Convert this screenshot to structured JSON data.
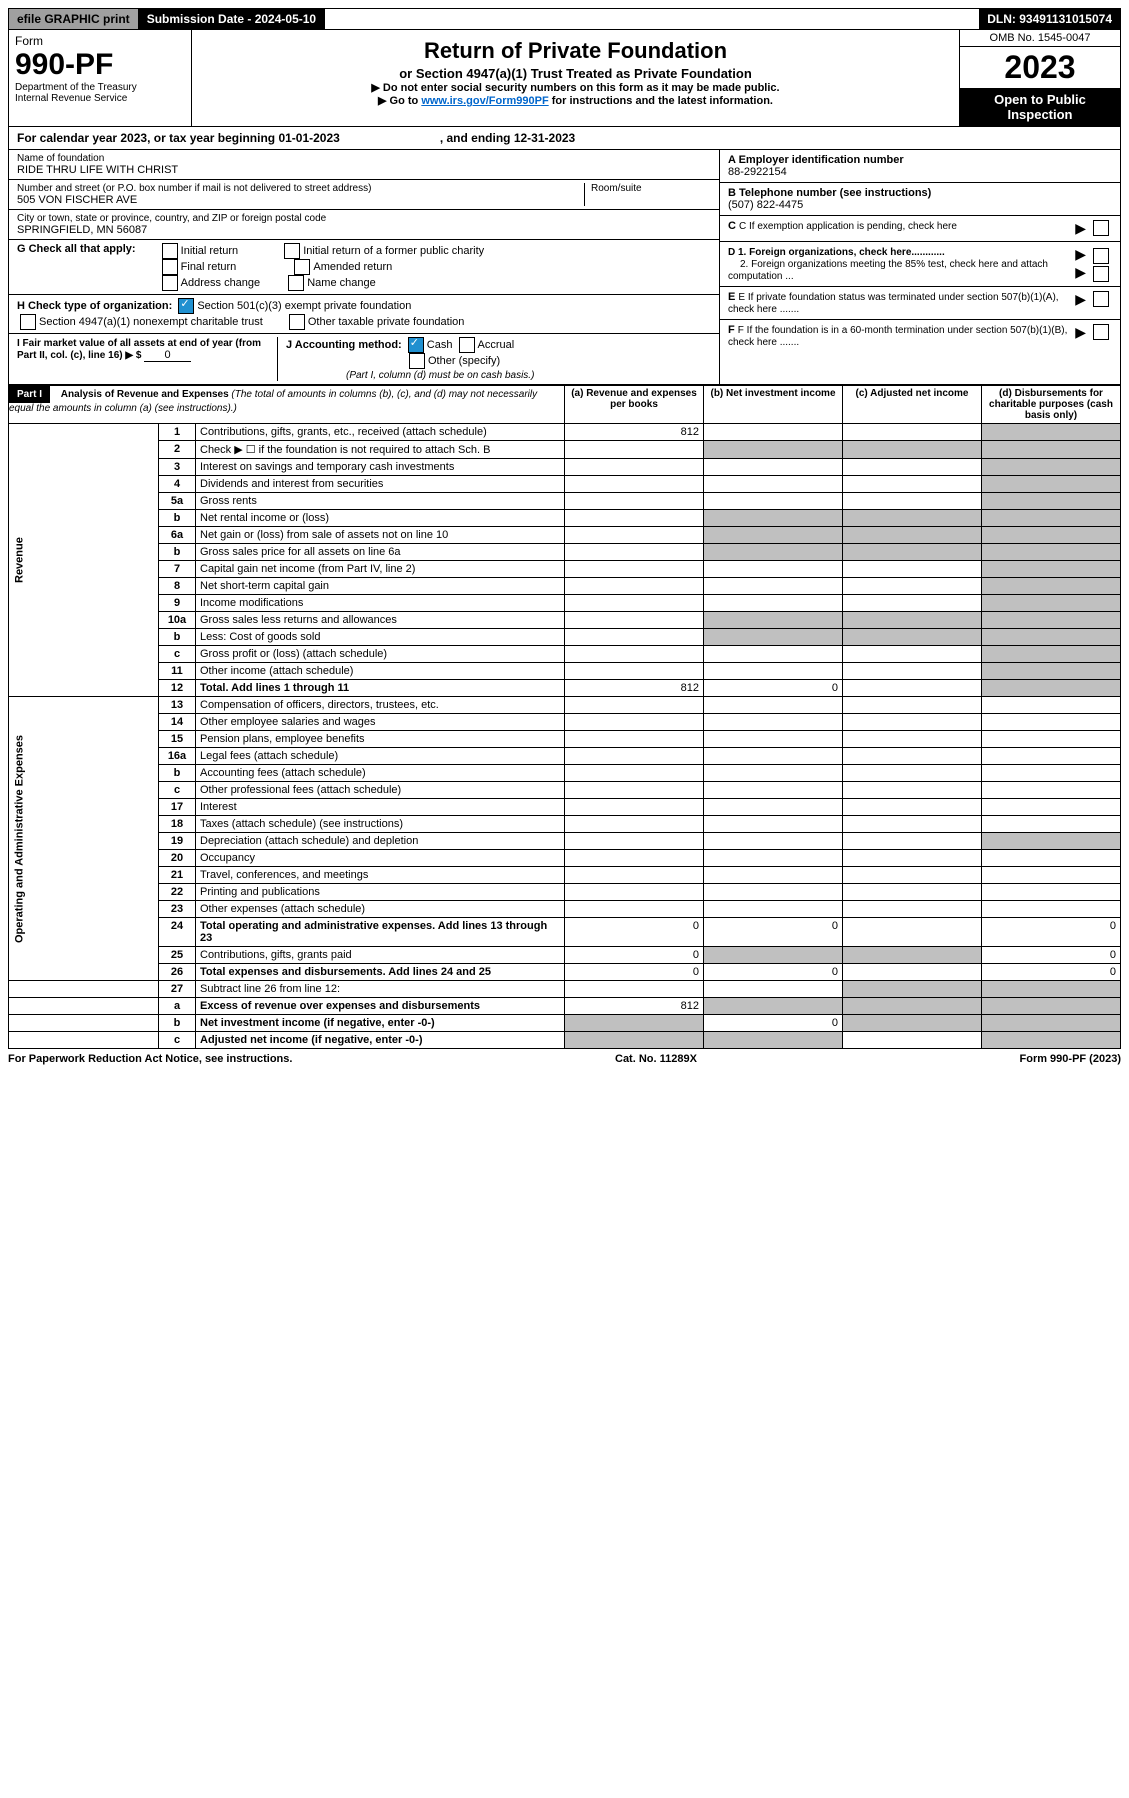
{
  "header": {
    "efile": "efile GRAPHIC print",
    "submission": "Submission Date - 2024-05-10",
    "dln": "DLN: 93491131015074"
  },
  "title": {
    "form_label": "Form",
    "form_no": "990-PF",
    "dept1": "Department of the Treasury",
    "dept2": "Internal Revenue Service",
    "main": "Return of Private Foundation",
    "sub1": "or Section 4947(a)(1) Trust Treated as Private Foundation",
    "sub2": "▶ Do not enter social security numbers on this form as it may be made public.",
    "sub3_pre": "▶ Go to ",
    "sub3_link": "www.irs.gov/Form990PF",
    "sub3_post": " for instructions and the latest information.",
    "omb": "OMB No. 1545-0047",
    "year": "2023",
    "open": "Open to Public Inspection"
  },
  "calyear": {
    "pre": "For calendar year 2023, or tax year beginning 01-01-2023",
    "end": ", and ending 12-31-2023"
  },
  "left": {
    "name_lbl": "Name of foundation",
    "name": "RIDE THRU LIFE WITH CHRIST",
    "addr_lbl": "Number and street (or P.O. box number if mail is not delivered to street address)",
    "addr": "505 VON FISCHER AVE",
    "room_lbl": "Room/suite",
    "city_lbl": "City or town, state or province, country, and ZIP or foreign postal code",
    "city": "SPRINGFIELD, MN  56087",
    "g_lbl": "G Check all that apply:",
    "g_opts": [
      "Initial return",
      "Final return",
      "Address change",
      "Initial return of a former public charity",
      "Amended return",
      "Name change"
    ],
    "h_lbl": "H Check type of organization:",
    "h_1": "Section 501(c)(3) exempt private foundation",
    "h_2": "Section 4947(a)(1) nonexempt charitable trust",
    "h_3": "Other taxable private foundation",
    "i_lbl": "I Fair market value of all assets at end of year (from Part II, col. (c), line 16) ▶ $",
    "i_val": "0",
    "j_lbl": "J Accounting method:",
    "j_cash": "Cash",
    "j_acc": "Accrual",
    "j_other": "Other (specify)",
    "j_note": "(Part I, column (d) must be on cash basis.)"
  },
  "right": {
    "a_lbl": "A Employer identification number",
    "a_val": "88-2922154",
    "b_lbl": "B Telephone number (see instructions)",
    "b_val": "(507) 822-4475",
    "c_lbl": "C If exemption application is pending, check here",
    "d1_lbl": "D 1. Foreign organizations, check here............",
    "d2_lbl": "2. Foreign organizations meeting the 85% test, check here and attach computation ...",
    "e_lbl": "E If private foundation status was terminated under section 507(b)(1)(A), check here .......",
    "f_lbl": "F If the foundation is in a 60-month termination under section 507(b)(1)(B), check here ......."
  },
  "part1": {
    "hdr": "Part I",
    "title": "Analysis of Revenue and Expenses",
    "note": "(The total of amounts in columns (b), (c), and (d) may not necessarily equal the amounts in column (a) (see instructions).)",
    "col_a": "(a) Revenue and expenses per books",
    "col_b": "(b) Net investment income",
    "col_c": "(c) Adjusted net income",
    "col_d": "(d) Disbursements for charitable purposes (cash basis only)"
  },
  "rev_label": "Revenue",
  "exp_label": "Operating and Administrative Expenses",
  "rows": [
    {
      "n": "1",
      "d": "Contributions, gifts, grants, etc., received (attach schedule)",
      "a": "812"
    },
    {
      "n": "2",
      "d": "Check ▶ ☐ if the foundation is not required to attach Sch. B"
    },
    {
      "n": "3",
      "d": "Interest on savings and temporary cash investments"
    },
    {
      "n": "4",
      "d": "Dividends and interest from securities"
    },
    {
      "n": "5a",
      "d": "Gross rents"
    },
    {
      "n": "b",
      "d": "Net rental income or (loss)"
    },
    {
      "n": "6a",
      "d": "Net gain or (loss) from sale of assets not on line 10"
    },
    {
      "n": "b",
      "d": "Gross sales price for all assets on line 6a"
    },
    {
      "n": "7",
      "d": "Capital gain net income (from Part IV, line 2)"
    },
    {
      "n": "8",
      "d": "Net short-term capital gain"
    },
    {
      "n": "9",
      "d": "Income modifications"
    },
    {
      "n": "10a",
      "d": "Gross sales less returns and allowances"
    },
    {
      "n": "b",
      "d": "Less: Cost of goods sold"
    },
    {
      "n": "c",
      "d": "Gross profit or (loss) (attach schedule)"
    },
    {
      "n": "11",
      "d": "Other income (attach schedule)"
    },
    {
      "n": "12",
      "d": "Total. Add lines 1 through 11",
      "a": "812",
      "b": "0",
      "bold": true
    }
  ],
  "exp_rows": [
    {
      "n": "13",
      "d": "Compensation of officers, directors, trustees, etc."
    },
    {
      "n": "14",
      "d": "Other employee salaries and wages"
    },
    {
      "n": "15",
      "d": "Pension plans, employee benefits"
    },
    {
      "n": "16a",
      "d": "Legal fees (attach schedule)"
    },
    {
      "n": "b",
      "d": "Accounting fees (attach schedule)"
    },
    {
      "n": "c",
      "d": "Other professional fees (attach schedule)"
    },
    {
      "n": "17",
      "d": "Interest"
    },
    {
      "n": "18",
      "d": "Taxes (attach schedule) (see instructions)"
    },
    {
      "n": "19",
      "d": "Depreciation (attach schedule) and depletion"
    },
    {
      "n": "20",
      "d": "Occupancy"
    },
    {
      "n": "21",
      "d": "Travel, conferences, and meetings"
    },
    {
      "n": "22",
      "d": "Printing and publications"
    },
    {
      "n": "23",
      "d": "Other expenses (attach schedule)"
    },
    {
      "n": "24",
      "d": "Total operating and administrative expenses. Add lines 13 through 23",
      "a": "0",
      "b": "0",
      "dd": "0",
      "bold": true
    },
    {
      "n": "25",
      "d": "Contributions, gifts, grants paid",
      "a": "0",
      "dd": "0"
    },
    {
      "n": "26",
      "d": "Total expenses and disbursements. Add lines 24 and 25",
      "a": "0",
      "b": "0",
      "dd": "0",
      "bold": true
    }
  ],
  "final_rows": [
    {
      "n": "27",
      "d": "Subtract line 26 from line 12:"
    },
    {
      "n": "a",
      "d": "Excess of revenue over expenses and disbursements",
      "a": "812",
      "bold": true
    },
    {
      "n": "b",
      "d": "Net investment income (if negative, enter -0-)",
      "b": "0",
      "bold": true
    },
    {
      "n": "c",
      "d": "Adjusted net income (if negative, enter -0-)",
      "bold": true
    }
  ],
  "footer": {
    "left": "For Paperwork Reduction Act Notice, see instructions.",
    "mid": "Cat. No. 11289X",
    "right": "Form 990-PF (2023)"
  }
}
